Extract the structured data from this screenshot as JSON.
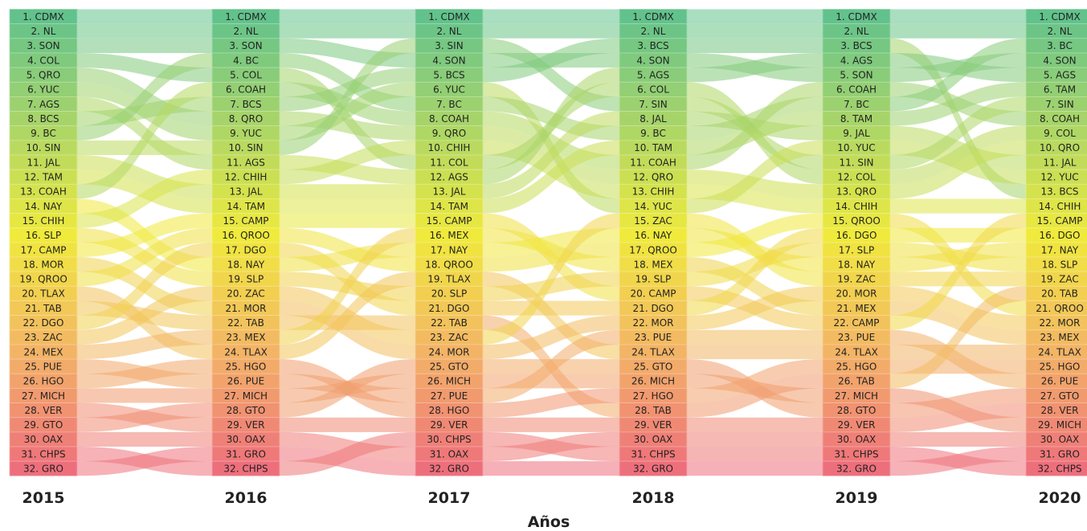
{
  "chart_data": {
    "type": "bump",
    "xlabel": "Años",
    "years": [
      "2015",
      "2016",
      "2017",
      "2018",
      "2019",
      "2020"
    ],
    "rankings": [
      [
        "CDMX",
        "NL",
        "SON",
        "COL",
        "QRO",
        "YUC",
        "AGS",
        "BCS",
        "BC",
        "SIN",
        "JAL",
        "TAM",
        "COAH",
        "NAY",
        "CHIH",
        "SLP",
        "CAMP",
        "MOR",
        "QROO",
        "TLAX",
        "TAB",
        "DGO",
        "ZAC",
        "MEX",
        "PUE",
        "HGO",
        "MICH",
        "VER",
        "GTO",
        "OAX",
        "CHPS",
        "GRO"
      ],
      [
        "CDMX",
        "NL",
        "SON",
        "BC",
        "COL",
        "COAH",
        "BCS",
        "QRO",
        "YUC",
        "SIN",
        "AGS",
        "CHIH",
        "JAL",
        "TAM",
        "CAMP",
        "QROO",
        "DGO",
        "NAY",
        "SLP",
        "ZAC",
        "MOR",
        "TAB",
        "MEX",
        "TLAX",
        "HGO",
        "PUE",
        "MICH",
        "GTO",
        "VER",
        "OAX",
        "GRO",
        "CHPS"
      ],
      [
        "CDMX",
        "NL",
        "SIN",
        "SON",
        "BCS",
        "YUC",
        "BC",
        "COAH",
        "QRO",
        "CHIH",
        "COL",
        "AGS",
        "JAL",
        "TAM",
        "CAMP",
        "MEX",
        "NAY",
        "QROO",
        "TLAX",
        "SLP",
        "DGO",
        "TAB",
        "ZAC",
        "MOR",
        "GTO",
        "MICH",
        "PUE",
        "HGO",
        "VER",
        "CHPS",
        "OAX",
        "GRO"
      ],
      [
        "CDMX",
        "NL",
        "BCS",
        "SON",
        "AGS",
        "COL",
        "SIN",
        "JAL",
        "BC",
        "TAM",
        "COAH",
        "QRO",
        "CHIH",
        "YUC",
        "ZAC",
        "NAY",
        "QROO",
        "MEX",
        "SLP",
        "CAMP",
        "DGO",
        "MOR",
        "PUE",
        "TLAX",
        "GTO",
        "MICH",
        "HGO",
        "TAB",
        "VER",
        "OAX",
        "CHPS",
        "GRO"
      ],
      [
        "CDMX",
        "NL",
        "BCS",
        "AGS",
        "SON",
        "COAH",
        "BC",
        "TAM",
        "JAL",
        "YUC",
        "SIN",
        "COL",
        "QRO",
        "CHIH",
        "QROO",
        "DGO",
        "SLP",
        "NAY",
        "ZAC",
        "MOR",
        "MEX",
        "CAMP",
        "PUE",
        "TLAX",
        "HGO",
        "TAB",
        "MICH",
        "GTO",
        "VER",
        "OAX",
        "CHPS",
        "GRO"
      ],
      [
        "CDMX",
        "NL",
        "BC",
        "SON",
        "AGS",
        "TAM",
        "SIN",
        "COAH",
        "COL",
        "QRO",
        "JAL",
        "YUC",
        "BCS",
        "CHIH",
        "CAMP",
        "DGO",
        "NAY",
        "SLP",
        "ZAC",
        "TAB",
        "QROO",
        "MOR",
        "MEX",
        "TLAX",
        "HGO",
        "PUE",
        "GTO",
        "VER",
        "MICH",
        "OAX",
        "GRO",
        "CHPS"
      ]
    ],
    "color_scale": {
      "rank_1": "#62c28c",
      "rank_8": "#a6d46a",
      "rank_16": "#f0ea3c",
      "rank_24": "#f3b466",
      "rank_32": "#ee6f7c"
    }
  }
}
